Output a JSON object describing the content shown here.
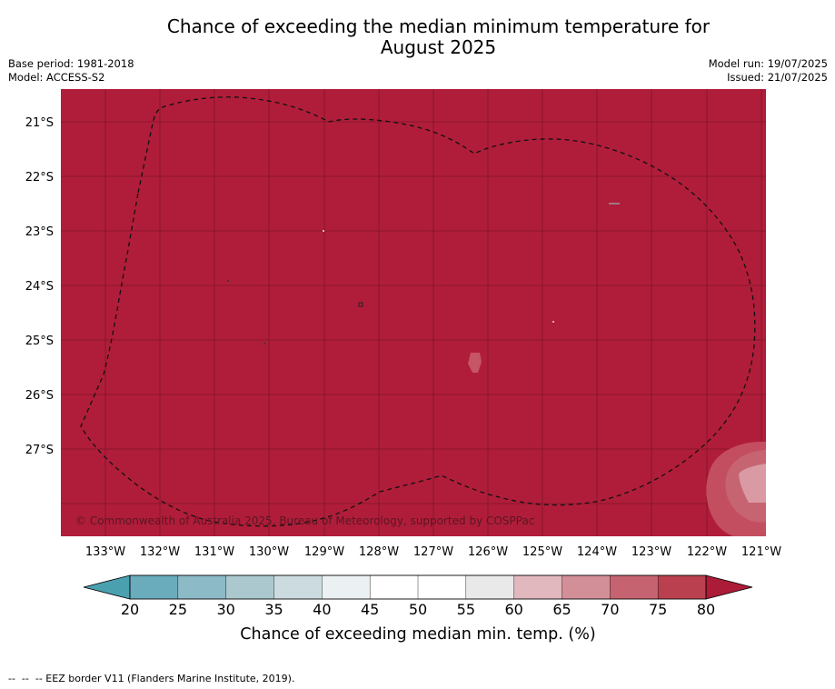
{
  "title": {
    "line1": "Chance of exceeding the median minimum temperature for",
    "line2": "August 2025"
  },
  "meta": {
    "base_period": "Base period: 1981-2018",
    "model": "Model: ACCESS-S2",
    "model_run": "Model run: 19/07/2025",
    "issued": "Issued: 21/07/2025"
  },
  "map": {
    "background_color": "#b01d3a",
    "copyright": "© Commonwealth of Australia 2025, Bureau of Meteorology, supported by COSPPac",
    "lat_labels": [
      "21°S",
      "22°S",
      "23°S",
      "24°S",
      "25°S",
      "26°S",
      "27°S"
    ],
    "lon_labels": [
      "133°W",
      "132°W",
      "131°W",
      "130°W",
      "129°W",
      "128°W",
      "127°W",
      "126°W",
      "125°W",
      "124°W",
      "123°W",
      "122°W",
      "121°W"
    ],
    "eez_border": "dashed"
  },
  "colorbar": {
    "ticks": [
      "20",
      "25",
      "30",
      "35",
      "40",
      "45",
      "50",
      "55",
      "60",
      "65",
      "70",
      "75",
      "80"
    ],
    "colors": [
      "#6aacbb",
      "#8cbac6",
      "#abc8cf",
      "#cbdbe0",
      "#ebf1f3",
      "#ffffff",
      "#ffffff",
      "#e9e9ea",
      "#e0b8be",
      "#d38f98",
      "#c56470",
      "#ba4050"
    ],
    "under_color": "#4ba0b0",
    "over_color": "#ac1b37",
    "label": "Chance of exceeding median min. temp. (%)"
  },
  "footnote": "--  --  -- EEZ border V11 (Flanders Marine Institute, 2019)."
}
